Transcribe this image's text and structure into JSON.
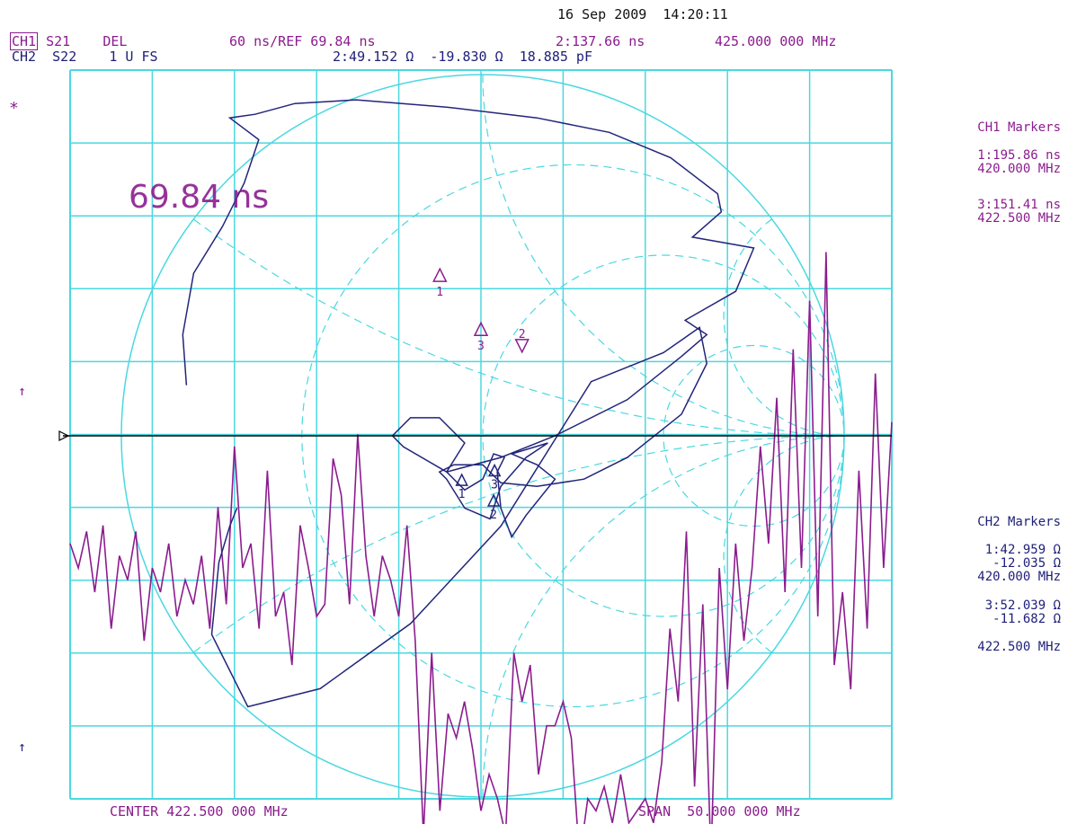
{
  "datetime": "16 Sep 2009  14:20:11",
  "ch1": {
    "label": "CH1",
    "param": "S21",
    "format": "DEL",
    "scale": "60 ns/REF 69.84 ns",
    "marker_readout": "2:137.66 ns",
    "freq": "425.000 000 MHz"
  },
  "ch2": {
    "label": "CH2",
    "param": "S22",
    "format": "1 U FS",
    "marker_readout_r": "2:49.152 Ω",
    "marker_readout_x": "-19.830 Ω",
    "marker_readout_c": "18.885 pF"
  },
  "ref_value_display": "69.84 ns",
  "asterisk": "*",
  "ref_arrow": "↑",
  "bottom_arrow": "↑",
  "center": "CENTER 422.500 000 MHz",
  "span": "SPAN  50.000 000 MHz",
  "ch1_markers": {
    "title": "CH1 Markers",
    "m1_value": "1:195.86 ns",
    "m1_freq": "420.000 MHz",
    "m3_value": "3:151.41 ns",
    "m3_freq": "422.500 MHz"
  },
  "ch2_markers": {
    "title": "CH2 Markers",
    "m1_r": "1:42.959 Ω",
    "m1_x": "-12.035 Ω",
    "m1_freq": "420.000 MHz",
    "m3_r": "3:52.039 Ω",
    "m3_x": "-11.682 Ω",
    "m3_freq": "422.500 MHz"
  },
  "colors": {
    "grid": "#4ad8e0",
    "ch1_trace": "#8b1c8e",
    "ch2_trace": "#22257a",
    "ref_line": "#000000"
  },
  "chart_data": [
    {
      "type": "line",
      "channel": "CH1",
      "parameter": "S21",
      "format": "group delay",
      "x_unit": "MHz",
      "y_unit": "ns",
      "xlim": [
        397.5,
        447.5
      ],
      "reference_value": 69.84,
      "scale_per_div": 60,
      "divisions_x": 10,
      "divisions_y": 10,
      "reference_division": 5,
      "grid": true,
      "markers": [
        {
          "id": "1",
          "x": 420.0,
          "y": 195.86
        },
        {
          "id": "2",
          "x": 425.0,
          "y": 137.66
        },
        {
          "id": "3",
          "x": 422.5,
          "y": 151.41
        }
      ],
      "trace_x": [
        397.5,
        398.0,
        398.5,
        399.0,
        399.5,
        400.0,
        400.5,
        401.0,
        401.5,
        402.0,
        402.5,
        403.0,
        403.5,
        404.0,
        404.5,
        405.0,
        405.5,
        406.0,
        406.5,
        407.0,
        407.5,
        408.0,
        408.5,
        409.0,
        409.5,
        410.0,
        410.5,
        411.0,
        411.5,
        412.0,
        412.5,
        413.0,
        413.5,
        414.0,
        414.5,
        415.0,
        415.5,
        416.0,
        416.5,
        417.0,
        417.5,
        418.0,
        418.5,
        419.0,
        419.5,
        420.0,
        420.5,
        421.0,
        421.5,
        422.0,
        422.5,
        423.0,
        423.5,
        424.0,
        424.5,
        425.0,
        425.5,
        426.0,
        426.5,
        427.0,
        427.5,
        428.0,
        428.5,
        429.0,
        429.5,
        430.0,
        430.5,
        431.0,
        431.5,
        432.0,
        432.5,
        433.0,
        433.5,
        434.0,
        434.5,
        435.0,
        435.5,
        436.0,
        436.5,
        437.0,
        437.5,
        438.0,
        438.5,
        439.0,
        439.5,
        440.0,
        440.5,
        441.0,
        441.5,
        442.0,
        442.5,
        443.0,
        443.5,
        444.0,
        444.5,
        445.0,
        445.5,
        446.0,
        446.5,
        447.0,
        447.5
      ],
      "trace_y": [
        -20,
        -40,
        -10,
        -60,
        -5,
        -90,
        -30,
        -50,
        -10,
        -100,
        -40,
        -60,
        -20,
        -80,
        -50,
        -70,
        -30,
        -90,
        10,
        -70,
        60,
        -40,
        -20,
        -90,
        40,
        -80,
        -60,
        -120,
        -5,
        -40,
        -80,
        -70,
        50,
        20,
        -70,
        70,
        -30,
        -80,
        -30,
        -50,
        -80,
        -5,
        -100,
        -260,
        -110,
        -240,
        -160,
        -180,
        -150,
        -190,
        -240,
        -210,
        -230,
        -260,
        -110,
        -150,
        -120,
        -210,
        -170,
        -170,
        -150,
        -180,
        -280,
        -230,
        -240,
        -220,
        -250,
        -210,
        -250,
        -240,
        -230,
        -250,
        -200,
        -90,
        -150,
        -10,
        -220,
        -70,
        -280,
        -40,
        -140,
        -20,
        -100,
        -40,
        60,
        -20,
        100,
        -60,
        140,
        -40,
        180,
        -80,
        220,
        -120,
        -60,
        -140,
        40,
        -90,
        120,
        -40,
        80
      ]
    },
    {
      "type": "scatter",
      "channel": "CH2",
      "parameter": "S22",
      "format": "Smith chart",
      "full_scale": 1,
      "z0_ohm": 50,
      "xlim": [
        -1,
        1
      ],
      "ylim": [
        -1,
        1
      ],
      "grid": true,
      "markers": [
        {
          "id": "1",
          "freq_mhz": 420.0,
          "r_ohm": 42.959,
          "x_ohm": -12.035
        },
        {
          "id": "2",
          "freq_mhz": 425.0,
          "r_ohm": 49.152,
          "x_ohm": -19.83
        },
        {
          "id": "3",
          "freq_mhz": 422.5,
          "r_ohm": 52.039,
          "x_ohm": -11.682
        }
      ],
      "trace_re": [
        -0.82,
        -0.83,
        -0.8,
        -0.72,
        -0.66,
        -0.62,
        -0.7,
        -0.63,
        -0.52,
        -0.35,
        -0.1,
        0.15,
        0.35,
        0.52,
        0.65,
        0.66,
        0.58,
        0.75,
        0.7,
        0.56,
        0.62,
        0.55,
        0.4,
        0.2,
        0.05,
        -0.1,
        -0.22,
        -0.25,
        -0.2,
        -0.12,
        -0.05,
        -0.1,
        -0.05,
        0.0,
        0.03,
        0.06,
        0.04,
        0.05,
        0.08,
        0.12,
        0.2,
        0.15,
        0.08,
        0.18,
        0.12,
        0.05,
        0.02,
        -0.05,
        -0.1,
        -0.12,
        -0.08,
        0.0,
        0.05,
        0.15,
        0.28,
        0.4,
        0.55,
        0.62,
        0.6,
        0.5,
        0.3,
        0.05,
        -0.2,
        -0.45,
        -0.65,
        -0.75,
        -0.73,
        -0.7,
        -0.68
      ],
      "trace_im": [
        0.14,
        0.28,
        0.45,
        0.58,
        0.7,
        0.82,
        0.88,
        0.89,
        0.92,
        0.93,
        0.91,
        0.88,
        0.84,
        0.77,
        0.67,
        0.62,
        0.55,
        0.52,
        0.4,
        0.32,
        0.28,
        0.22,
        0.1,
        0.0,
        -0.06,
        -0.1,
        -0.03,
        0.0,
        0.05,
        0.05,
        -0.02,
        -0.1,
        -0.15,
        -0.12,
        -0.05,
        -0.06,
        -0.1,
        -0.2,
        -0.28,
        -0.22,
        -0.12,
        -0.08,
        -0.05,
        -0.02,
        -0.06,
        -0.14,
        -0.23,
        -0.2,
        -0.12,
        -0.1,
        -0.08,
        -0.08,
        -0.13,
        -0.14,
        -0.12,
        -0.06,
        0.06,
        0.2,
        0.3,
        0.23,
        0.15,
        -0.25,
        -0.52,
        -0.7,
        -0.75,
        -0.55,
        -0.35,
        -0.25,
        -0.2
      ]
    }
  ]
}
